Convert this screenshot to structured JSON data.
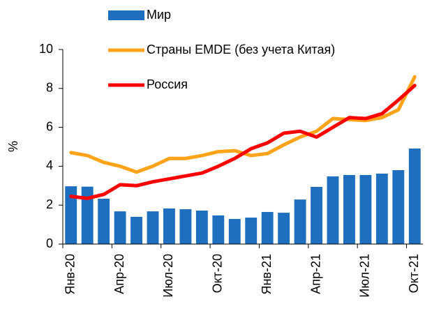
{
  "chart_data": {
    "type": "bar",
    "categories": [
      "Янв-20",
      null,
      null,
      "Апр-20",
      null,
      null,
      "Июл-20",
      null,
      null,
      "Окт-20",
      null,
      null,
      "Янв-21",
      null,
      null,
      "Апр-21",
      null,
      null,
      "Июл-21",
      null,
      null,
      "Окт-21"
    ],
    "series": [
      {
        "name": "Мир",
        "type": "bar",
        "color": "#1f6fc0",
        "values": [
          2.97,
          2.95,
          2.33,
          1.68,
          1.4,
          1.68,
          1.83,
          1.79,
          1.72,
          1.47,
          1.29,
          1.36,
          1.65,
          1.61,
          2.29,
          2.94,
          3.48,
          3.55,
          3.55,
          3.62,
          3.8,
          4.91
        ]
      },
      {
        "name": "Страны EMDE (без учета Китая)",
        "type": "line",
        "color": "#ffa31a",
        "values": [
          4.7,
          4.55,
          4.2,
          4.0,
          3.7,
          4.0,
          4.4,
          4.4,
          4.55,
          4.75,
          4.8,
          4.55,
          4.65,
          5.1,
          5.5,
          5.8,
          6.45,
          6.4,
          6.35,
          6.5,
          6.9,
          8.6
        ]
      },
      {
        "name": "Россия",
        "type": "line",
        "color": "#ff0000",
        "values": [
          2.45,
          2.35,
          2.55,
          3.05,
          3.0,
          3.2,
          3.35,
          3.5,
          3.65,
          4.0,
          4.4,
          4.9,
          5.2,
          5.7,
          5.8,
          5.5,
          6.0,
          6.5,
          6.45,
          6.7,
          7.4,
          8.15
        ]
      }
    ],
    "y_label": "%",
    "ylim": [
      0,
      10
    ],
    "yticks": [
      0,
      2,
      4,
      6,
      8,
      10
    ]
  }
}
